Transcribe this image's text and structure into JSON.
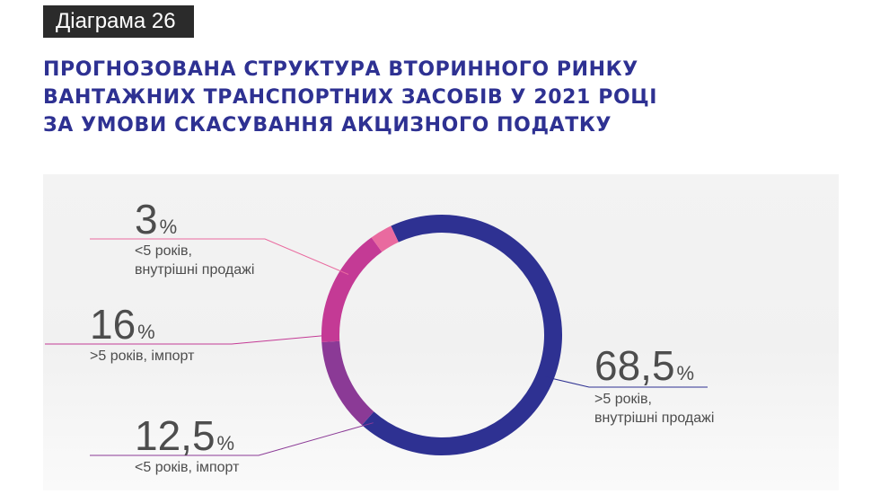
{
  "header": {
    "tag": "Діаграма 26",
    "title_lines": [
      "ПРОГНОЗОВАНА СТРУКТУРА ВТОРИННОГО РИНКУ",
      "ВАНТАЖНИХ ТРАНСПОРТНИХ ЗАСОБІВ У 2021 РОЦІ",
      "ЗА УМОВИ СКАСУВАННЯ АКЦИЗНОГО ПОДАТКУ"
    ]
  },
  "chart_data": {
    "type": "pie",
    "style": "donut",
    "title": "",
    "legend": "none",
    "slices": [
      {
        "value": 68.5,
        "value_text": "68,5",
        "unit": "%",
        "label_lines": [
          ">5 років,",
          "внутрішні продажі"
        ],
        "color": "#2e3192"
      },
      {
        "value": 12.5,
        "value_text": "12,5",
        "unit": "%",
        "label_lines": [
          "<5 років, імпорт"
        ],
        "color": "#8b3a96"
      },
      {
        "value": 16,
        "value_text": "16",
        "unit": "%",
        "label_lines": [
          ">5 років, імпорт"
        ],
        "color": "#c43a95"
      },
      {
        "value": 3,
        "value_text": "3",
        "unit": "%",
        "label_lines": [
          "<5 років,",
          "внутрішні продажі"
        ],
        "color": "#e96a9f"
      }
    ]
  }
}
